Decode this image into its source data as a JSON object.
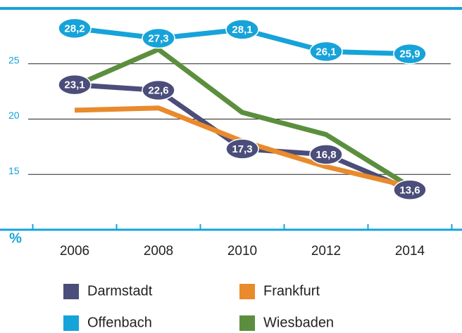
{
  "chart_data": {
    "type": "line",
    "y_label": "%",
    "categories": [
      "2006",
      "2008",
      "2010",
      "2012",
      "2014"
    ],
    "series": [
      {
        "name": "Darmstadt",
        "color": "#4b4d7a",
        "values": [
          23.1,
          22.6,
          17.3,
          16.8,
          13.6
        ],
        "value_labels": [
          "23,1",
          "22,6",
          "17,3",
          "16,8",
          "13,6"
        ]
      },
      {
        "name": "Offenbach",
        "color": "#16a3d9",
        "values": [
          28.2,
          27.3,
          28.1,
          26.1,
          25.9
        ],
        "value_labels": [
          "28,2",
          "27,3",
          "28,1",
          "26,1",
          "25,9"
        ]
      },
      {
        "name": "Frankfurt",
        "color": "#e98a2c",
        "values": [
          20.8,
          21.0,
          18.0,
          15.7,
          13.9
        ]
      },
      {
        "name": "Wiesbaden",
        "color": "#5b8f3e",
        "values": [
          23.0,
          26.3,
          20.6,
          18.6,
          13.9
        ]
      }
    ],
    "ylim": [
      10,
      30
    ],
    "yticks": [
      15,
      20,
      25
    ],
    "grid": true,
    "legend": "bottom"
  }
}
